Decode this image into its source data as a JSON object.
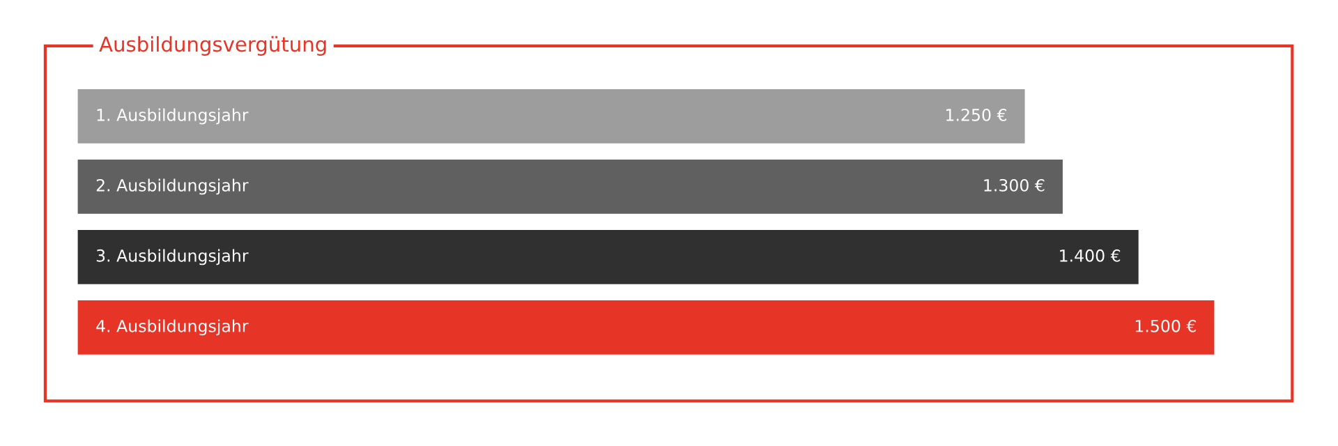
{
  "chart_data": {
    "type": "bar",
    "orientation": "horizontal",
    "title": "Ausbildungsvergütung",
    "categories": [
      "1. Ausbildungsjahr",
      "2. Ausbildungsjahr",
      "3. Ausbildungsjahr",
      "4. Ausbildungsjahr"
    ],
    "values": [
      1250,
      1300,
      1400,
      1500
    ],
    "value_labels": [
      "1.250 €",
      "1.300 €",
      "1.400 €",
      "1.500 €"
    ],
    "colors": [
      "#9d9d9d",
      "#606060",
      "#303030",
      "#e63427"
    ],
    "legend": false
  }
}
